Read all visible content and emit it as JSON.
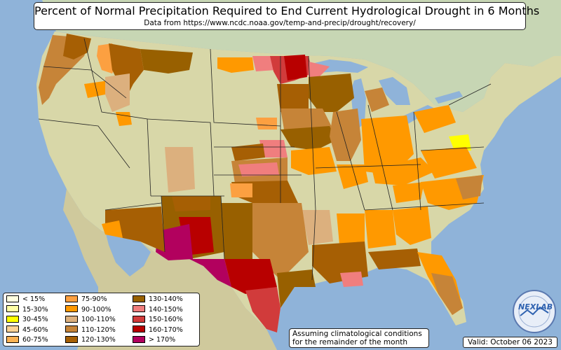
{
  "title": "Percent of Normal Precipitation Required to End Current Hydrological Drought in 6 Months",
  "subtitle": "Data from https://www.ncdc.noaa.gov/temp-and-precip/drought/recovery/",
  "legend": [
    {
      "label": "< 15%",
      "color": "#ffffe0"
    },
    {
      "label": "15-30%",
      "color": "#ffffa6"
    },
    {
      "label": "30-45%",
      "color": "#ffff00"
    },
    {
      "label": "45-60%",
      "color": "#fcd296"
    },
    {
      "label": "60-75%",
      "color": "#fbb253"
    },
    {
      "label": "75-90%",
      "color": "#fca041"
    },
    {
      "label": "90-100%",
      "color": "#ff9900"
    },
    {
      "label": "100-110%",
      "color": "#dcb07e"
    },
    {
      "label": "110-120%",
      "color": "#c68438"
    },
    {
      "label": "120-130%",
      "color": "#a65f04"
    },
    {
      "label": "130-140%",
      "color": "#986000"
    },
    {
      "label": "140-150%",
      "color": "#f07e7e"
    },
    {
      "label": "150-160%",
      "color": "#d13b3b"
    },
    {
      "label": "160-170%",
      "color": "#b80000"
    },
    {
      "label": "> 170%",
      "color": "#b2015e"
    }
  ],
  "note_line1": "Assuming climatological conditions",
  "note_line2": "for the remainder of the month",
  "valid": "Valid: October 06 2023",
  "logo_text": "NEXLAB",
  "colors": {
    "ocean": "#8fb3d9",
    "land": "#d8d7a8",
    "canada": "#c7d6b4",
    "mexico": "#cfc99c"
  }
}
